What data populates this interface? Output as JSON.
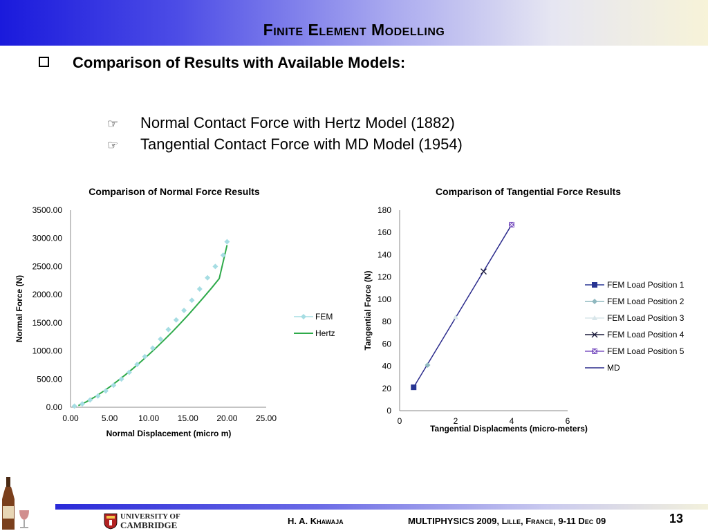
{
  "header": {
    "title": "Finite Element Modelling"
  },
  "section": {
    "subtitle": "Comparison of Results with Available Models:",
    "points": [
      "Normal Contact Force with Hertz Model (1882)",
      "Tangential Contact Force with MD Model (1954)"
    ],
    "bullet_glyph": "☞"
  },
  "chart_data": [
    {
      "type": "scatter",
      "title": "Comparison of Normal Force Results",
      "xlabel": "Normal Displacement (micro m)",
      "ylabel": "Normal Force (N)",
      "xlim": [
        0,
        25
      ],
      "ylim": [
        0,
        3500
      ],
      "xticks": [
        0,
        5,
        10,
        15,
        20,
        25
      ],
      "yticks": [
        0,
        500,
        1000,
        1500,
        2000,
        2500,
        3000,
        3500
      ],
      "xtick_labels": [
        "0.00",
        "5.00",
        "10.00",
        "15.00",
        "20.00",
        "25.00"
      ],
      "ytick_labels": [
        "0.00",
        "500.00",
        "1000.00",
        "1500.00",
        "2000.00",
        "2500.00",
        "3000.00",
        "3500.00"
      ],
      "grid": false,
      "legend_position": "right",
      "series": [
        {
          "name": "FEM",
          "kind": "markers",
          "color": "#a6dde3",
          "x": [
            0.5,
            1.5,
            2.5,
            3.5,
            4.5,
            5.5,
            6.5,
            7.5,
            8.5,
            9.5,
            10.5,
            11.5,
            12.5,
            13.5,
            14.5,
            15.5,
            16.5,
            17.5,
            18.5,
            19.5,
            20.0
          ],
          "y": [
            20,
            60,
            130,
            200,
            290,
            390,
            500,
            620,
            760,
            900,
            1050,
            1210,
            1380,
            1550,
            1720,
            1900,
            2100,
            2300,
            2500,
            2700,
            2940
          ]
        },
        {
          "name": "Hertz",
          "kind": "line",
          "color": "#2eaa4a",
          "x": [
            1,
            2,
            3,
            4,
            5,
            6,
            7,
            8,
            9,
            10,
            11,
            12,
            13,
            14,
            15,
            16,
            17,
            18,
            19,
            20
          ],
          "y": [
            30,
            95,
            175,
            265,
            360,
            465,
            575,
            690,
            810,
            935,
            1065,
            1200,
            1340,
            1485,
            1635,
            1790,
            1950,
            2115,
            2285,
            2880
          ]
        }
      ]
    },
    {
      "type": "scatter",
      "title": "Comparison of Tangential Force Results",
      "xlabel": "Tangential Displacments (micro-meters)",
      "ylabel": "Tangential Force (N)",
      "xlim": [
        0,
        6
      ],
      "ylim": [
        0,
        180
      ],
      "xticks": [
        0,
        2,
        4,
        6
      ],
      "yticks": [
        0,
        20,
        40,
        60,
        80,
        100,
        120,
        140,
        160,
        180
      ],
      "xtick_labels": [
        "0",
        "2",
        "4",
        "6"
      ],
      "ytick_labels": [
        "0",
        "20",
        "40",
        "60",
        "80",
        "100",
        "120",
        "140",
        "160",
        "180"
      ],
      "grid": false,
      "legend_position": "right",
      "series": [
        {
          "name": "FEM Load Position 1",
          "marker": "square",
          "color": "#283593",
          "x": [
            0.5
          ],
          "y": [
            21
          ]
        },
        {
          "name": "FEM Load Position 2",
          "marker": "diamond",
          "color": "#8fb8bf",
          "x": [
            1.0
          ],
          "y": [
            41
          ]
        },
        {
          "name": "FEM Load Position 3",
          "marker": "triangle",
          "color": "#d8e6ea",
          "x": [
            2.0
          ],
          "y": [
            84
          ]
        },
        {
          "name": "FEM Load Position 4",
          "marker": "x",
          "color": "#1a1a3a",
          "x": [
            3.0
          ],
          "y": [
            125
          ]
        },
        {
          "name": "FEM Load Position 5",
          "marker": "square-x",
          "color": "#7e57c2",
          "x": [
            4.0
          ],
          "y": [
            167
          ]
        },
        {
          "name": "MD",
          "kind": "line",
          "color": "#2b2b8c",
          "x": [
            0.5,
            4.0
          ],
          "y": [
            21,
            167
          ]
        }
      ]
    }
  ],
  "footer": {
    "logo_line1": "UNIVERSITY OF",
    "logo_line2": "CAMBRIDGE",
    "author": "H. A. Khawaja",
    "conference": "MULTIPHYSICS 2009, Lille, France, 9-11 Dec 09",
    "page_number": "13"
  }
}
